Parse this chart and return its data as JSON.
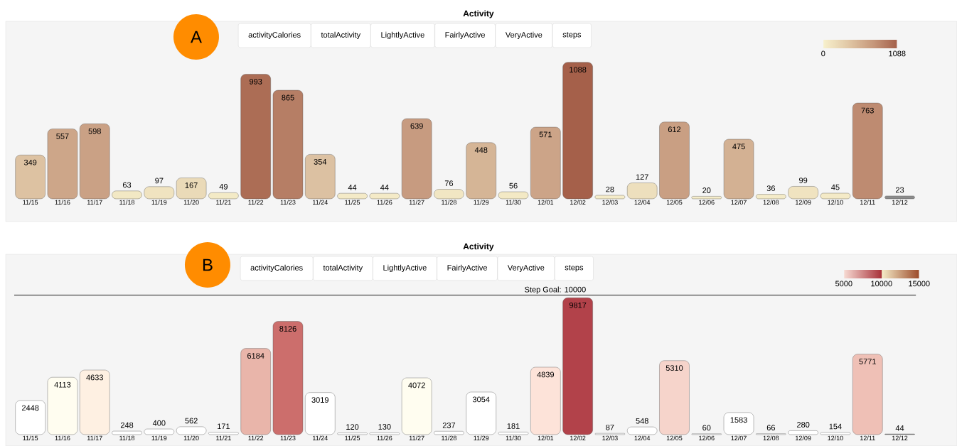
{
  "chart_data": [
    {
      "type": "bar",
      "title": "Activity",
      "categories": [
        "11/15",
        "11/16",
        "11/17",
        "11/18",
        "11/19",
        "11/20",
        "11/21",
        "11/22",
        "11/23",
        "11/24",
        "11/25",
        "11/26",
        "11/27",
        "11/28",
        "11/29",
        "11/30",
        "12/01",
        "12/02",
        "12/03",
        "12/04",
        "12/05",
        "12/06",
        "12/07",
        "12/08",
        "12/09",
        "12/10",
        "12/11",
        "12/12"
      ],
      "values": [
        349,
        557,
        598,
        63,
        97,
        167,
        49,
        993,
        865,
        354,
        44,
        44,
        639,
        76,
        448,
        56,
        571,
        1088,
        28,
        127,
        612,
        20,
        475,
        36,
        99,
        45,
        763,
        23
      ],
      "colors": [
        "#ddc2a2",
        "#cda689",
        "#caa185",
        "#f2e8c4",
        "#f0e3c0",
        "#eadab8",
        "#f3eac6",
        "#ac6d55",
        "#b67e65",
        "#dcc1a2",
        "#f4eac7",
        "#f4eac7",
        "#c79b80",
        "#f1e6c3",
        "#d5b596",
        "#f3e9c5",
        "#cca488",
        "#a5604a",
        "#f5ecc9",
        "#eddfbd",
        "#c99f83",
        "#f6edca",
        "#d3b193",
        "#f4ebc8",
        "#f0e3c0",
        "#f4eac7",
        "#be8b71",
        "#8c8c8c"
      ],
      "data_labels": true,
      "clim": [
        0,
        1088
      ],
      "cticks": [
        0,
        1088
      ],
      "annotations": [
        "A",
        "activityCalories",
        "totalActivity",
        "LightlyActive",
        "FairlyActive",
        "VeryActive",
        "steps"
      ]
    },
    {
      "type": "bar",
      "title": "Activity",
      "categories": [
        "11/15",
        "11/16",
        "11/17",
        "11/18",
        "11/19",
        "11/20",
        "11/21",
        "11/22",
        "11/23",
        "11/24",
        "11/25",
        "11/26",
        "11/27",
        "11/28",
        "11/29",
        "11/30",
        "12/01",
        "12/02",
        "12/03",
        "12/04",
        "12/05",
        "12/06",
        "12/07",
        "12/08",
        "12/09",
        "12/10",
        "12/11",
        "12/12"
      ],
      "values": [
        2448,
        4113,
        4633,
        248,
        400,
        562,
        171,
        6184,
        8126,
        3019,
        120,
        130,
        4072,
        237,
        3054,
        181,
        4839,
        9817,
        87,
        548,
        5310,
        60,
        1583,
        66,
        280,
        154,
        5771,
        44
      ],
      "colors": [
        "#ffffff",
        "#fffdf0",
        "#fef0e2",
        "#ffffff",
        "#ffffff",
        "#ffffff",
        "#ffffff",
        "#e9b5aa",
        "#cc6e6c",
        "#ffffff",
        "#ffffff",
        "#ffffff",
        "#fffdf0",
        "#ffffff",
        "#ffffff",
        "#ffffff",
        "#fde3d9",
        "#b2424a",
        "#ffffff",
        "#ffffff",
        "#f6d4cb",
        "#ffffff",
        "#ffffff",
        "#ffffff",
        "#ffffff",
        "#ffffff",
        "#efc0b6",
        "#8c8c8c"
      ],
      "data_labels": true,
      "clim": [
        5000,
        15000
      ],
      "cticks": [
        5000,
        10000,
        15000
      ],
      "ref_lines": [
        {
          "axis": "y",
          "value": 10000,
          "label": "Step Goal: 10000"
        }
      ],
      "annotations": [
        "B",
        "activityCalories",
        "totalActivity",
        "LightlyActive",
        "FairlyActive",
        "VeryActive",
        "steps"
      ]
    }
  ]
}
